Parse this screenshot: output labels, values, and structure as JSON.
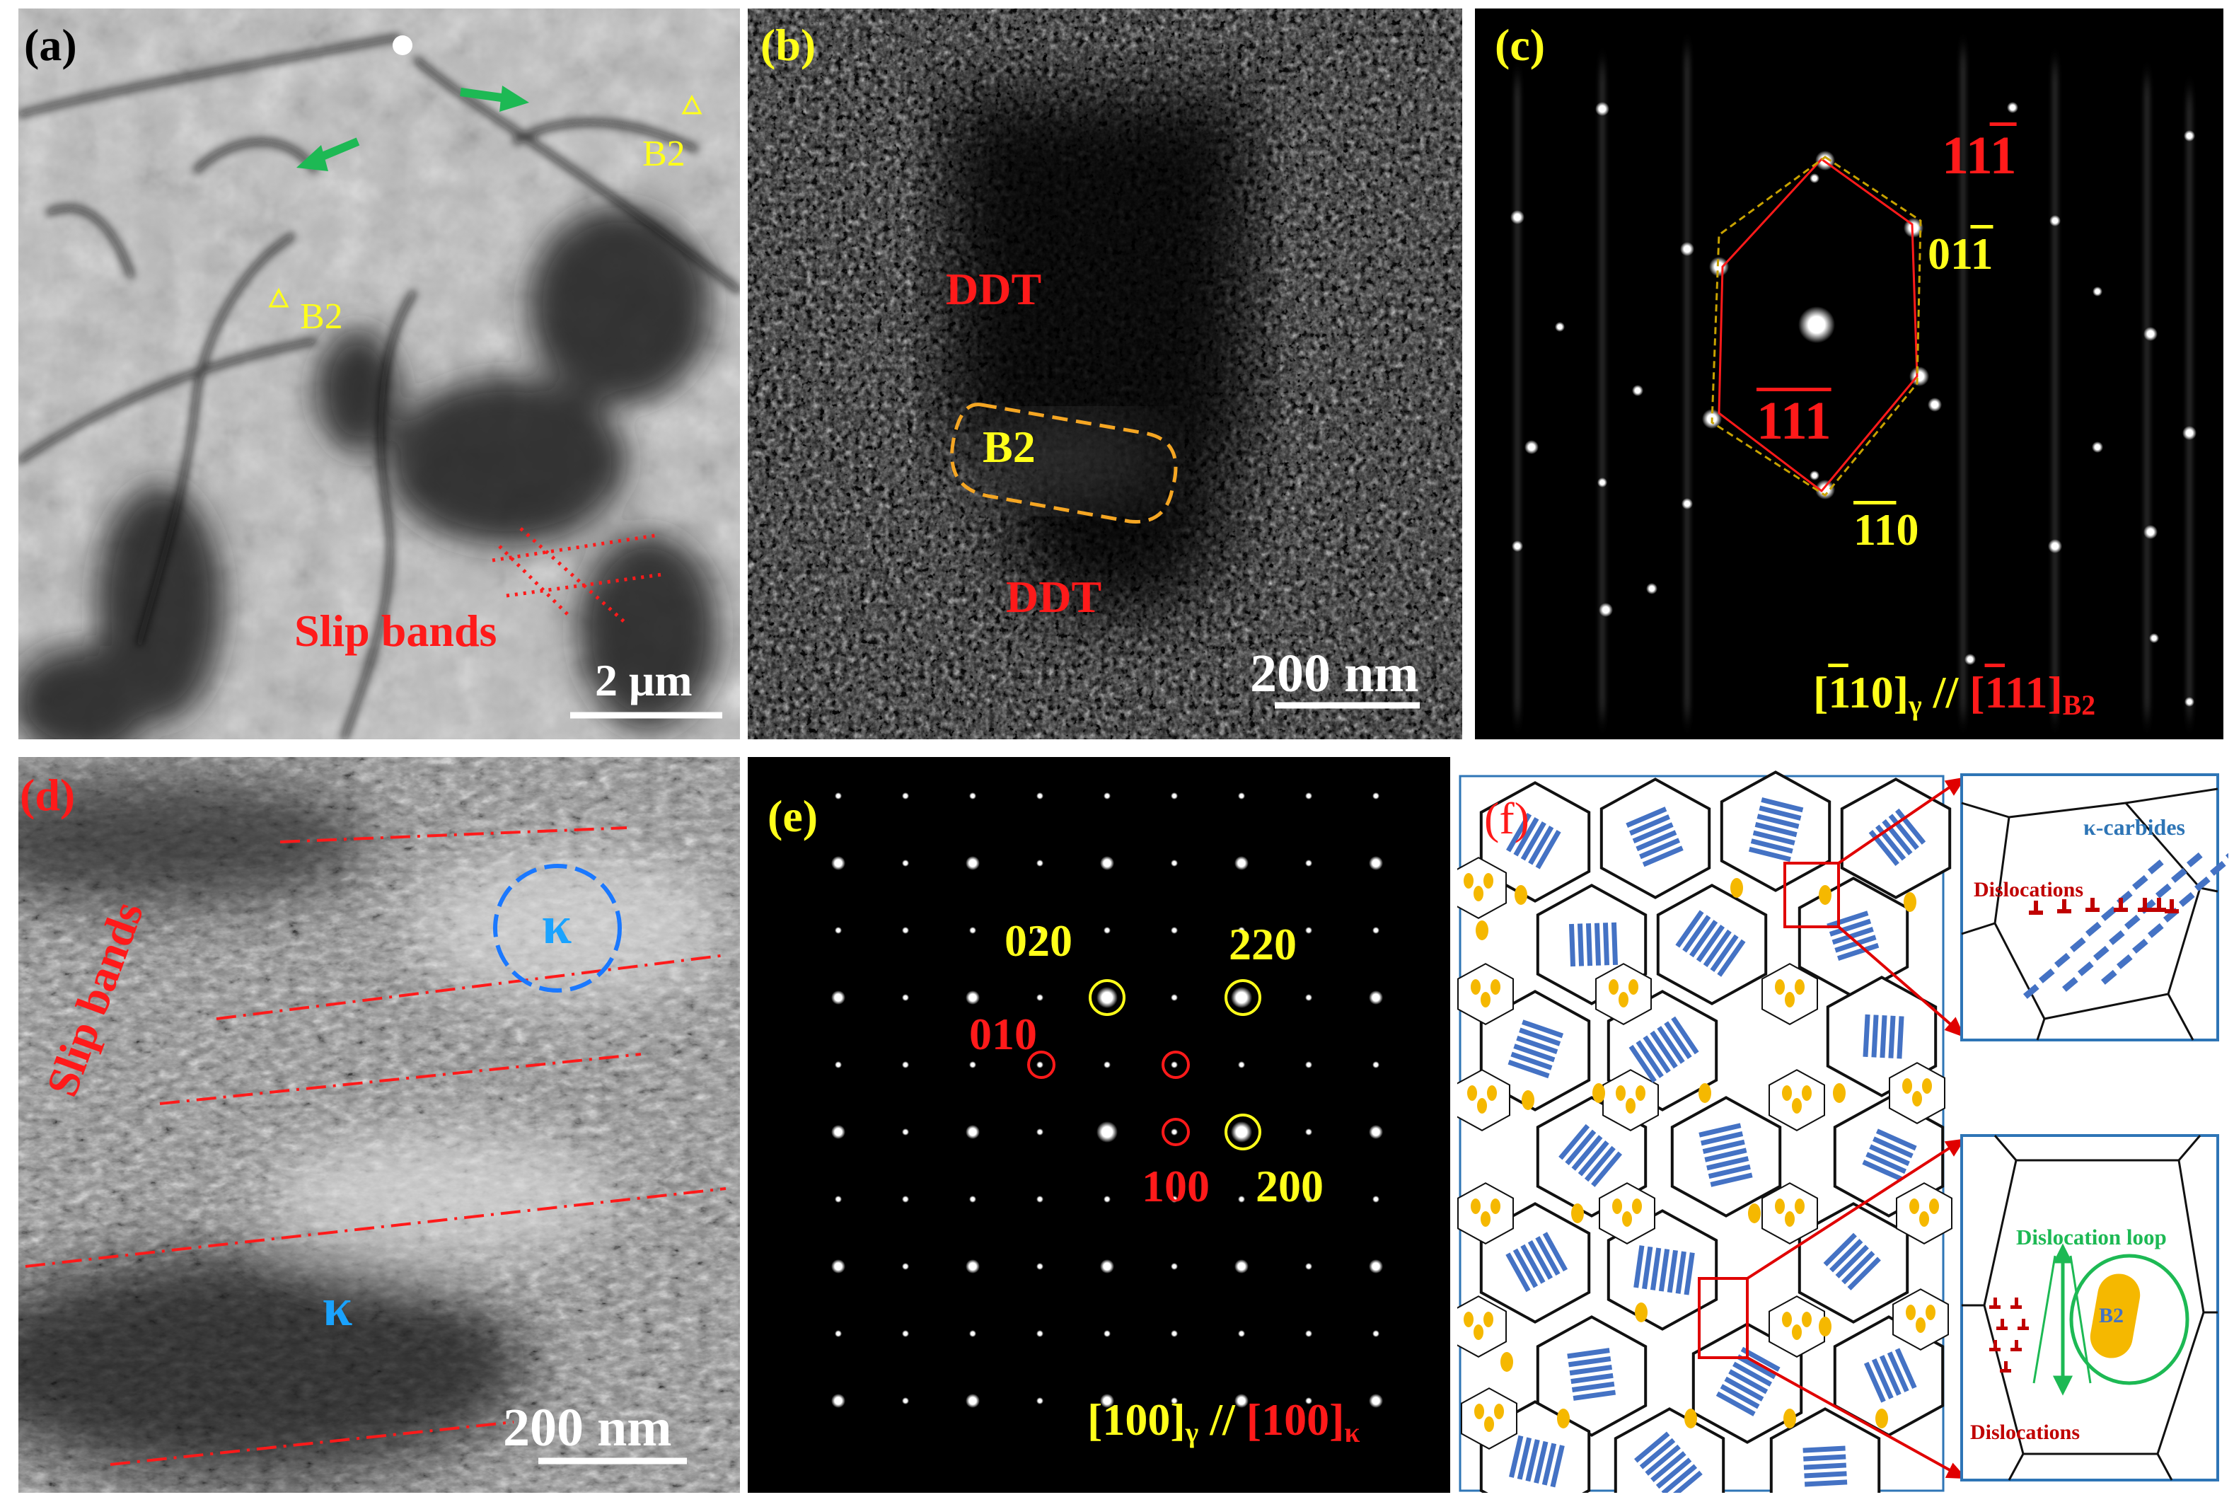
{
  "panels": {
    "a": {
      "label": "(a)",
      "b2_top": "B2",
      "b2_mid": "B2",
      "slip_bands": "Slip bands",
      "scale": "2 μm"
    },
    "b": {
      "label": "(b)",
      "ddt_top": "DDT",
      "b2": "B2",
      "ddt_bottom": "DDT",
      "scale": "200 nm"
    },
    "c": {
      "label": "(c)",
      "spot_11_1": {
        "pre": "11",
        "bar": "1"
      },
      "spot_01_1": {
        "pre": "01",
        "bar": "1"
      },
      "spot_111": {
        "bar": "111"
      },
      "spot_110": {
        "bar": "11",
        "post": "0"
      },
      "zone_gamma": {
        "open": "[",
        "bar": "1",
        "rest": "10]",
        "sub": "γ"
      },
      "zone_sep": " // ",
      "zone_b2": {
        "open": "[",
        "bar": "1",
        "rest": "11]",
        "sub": "B2"
      }
    },
    "d": {
      "label": "(d)",
      "slip_bands": "Slip bands",
      "kappa_circle": "κ",
      "kappa_lower": "κ",
      "scale": "200 nm"
    },
    "e": {
      "label": "(e)",
      "spot_020": "020",
      "spot_220": "220",
      "spot_010": "010",
      "spot_100": "100",
      "spot_200": "200",
      "zone_gamma": {
        "main": "[100]",
        "sub": "γ"
      },
      "zone_sep": " // ",
      "zone_kappa": {
        "main": "[100]",
        "sub": "κ"
      }
    },
    "f": {
      "label": "(f)",
      "inset_top": {
        "kappa_carbides": "κ-carbides",
        "dislocations": "Dislocations"
      },
      "inset_bottom": {
        "dislocation_loop": "Dislocation loop",
        "b2": "B2",
        "dislocations": "Dislocations"
      }
    }
  },
  "colors": {
    "label_yellow": "#ffff1a",
    "label_red": "#ff1a1a",
    "kappa_blue": "#1aa3ff",
    "schematic_blue": "#4472c4",
    "schematic_orange": "#f5b800",
    "schematic_green": "#1db954",
    "dislocation_red": "#c00000"
  }
}
